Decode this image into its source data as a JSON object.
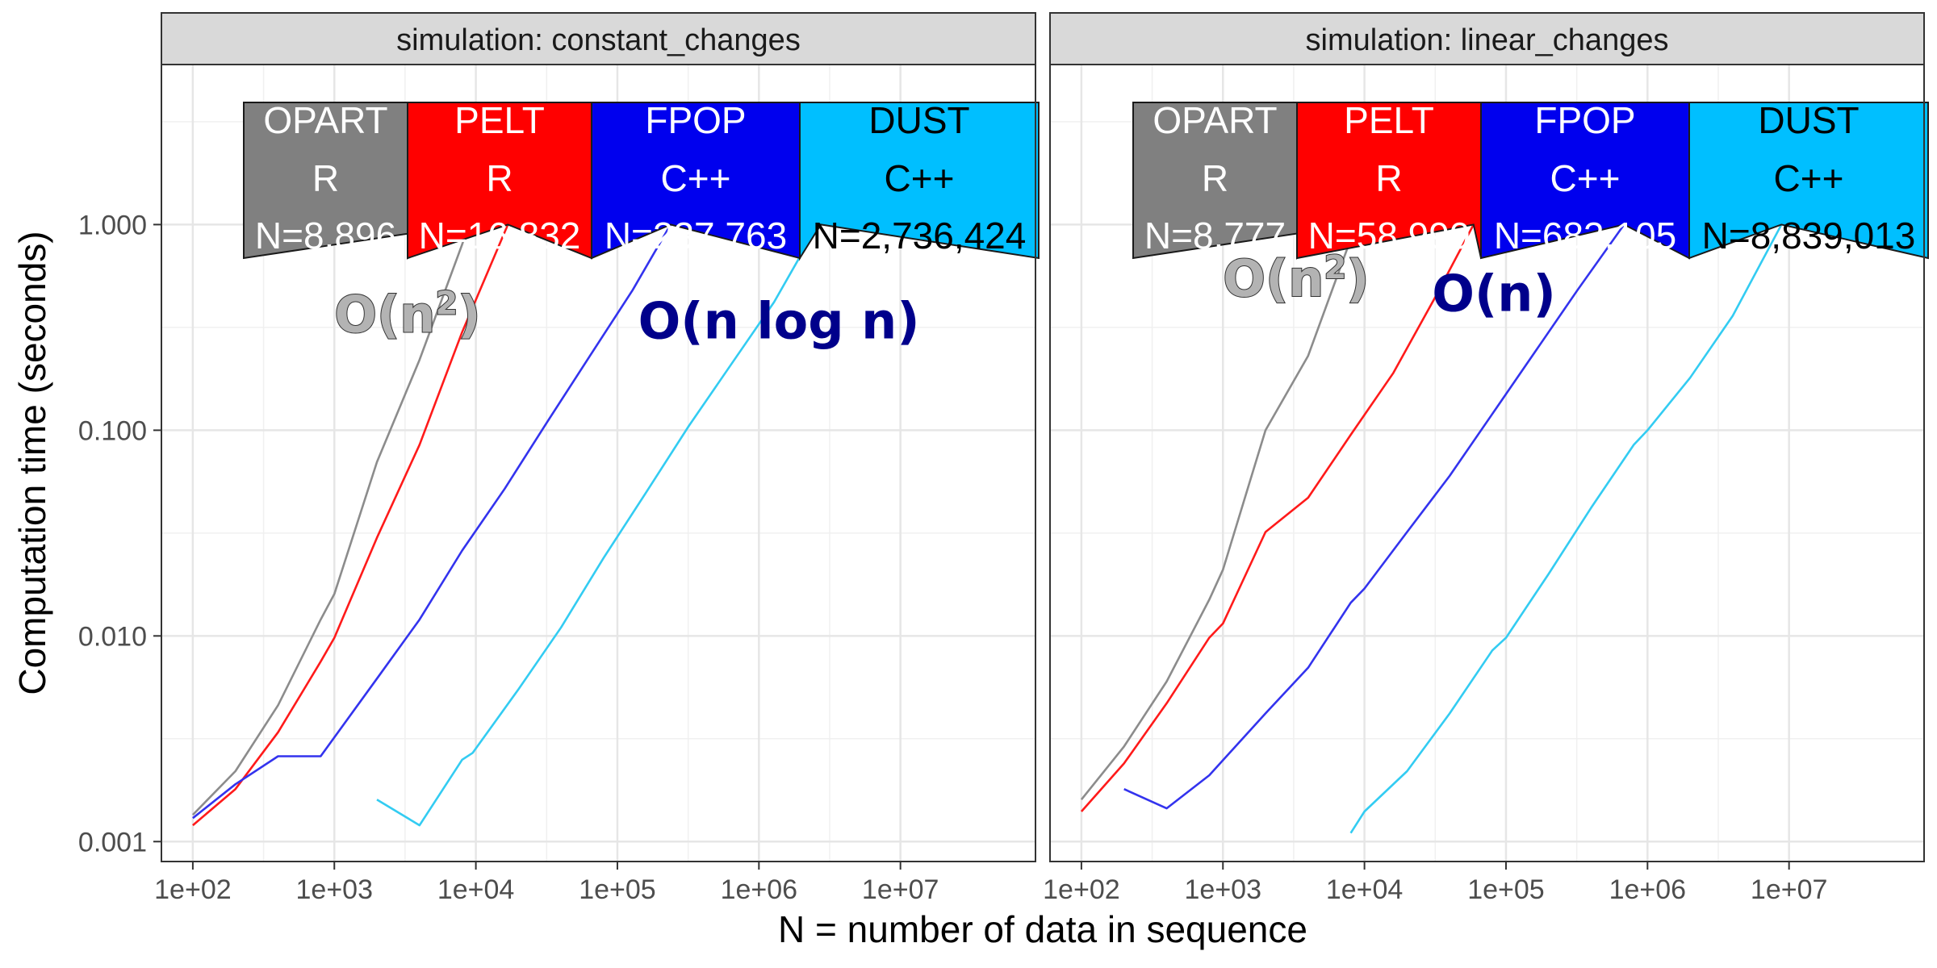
{
  "chart_data": {
    "type": "line",
    "xlabel": "N = number of data in sequence",
    "ylabel": "Computation time (seconds)",
    "x_scale": "log10",
    "y_scale": "log10",
    "xlim": [
      60,
      90000000
    ],
    "ylim": [
      0.0008,
      6
    ],
    "x_ticks": [
      100,
      1000,
      10000,
      100000,
      1000000,
      10000000
    ],
    "x_tick_labels": [
      "1e+02",
      "1e+03",
      "1e+04",
      "1e+05",
      "1e+06",
      "1e+07"
    ],
    "y_ticks": [
      0.001,
      0.01,
      0.1,
      1
    ],
    "y_tick_labels": [
      "0.001",
      "0.010",
      "0.100",
      "1.000"
    ],
    "grid": true,
    "legend": "none",
    "colors": {
      "OPART": "#8c8c8c",
      "PELT": "#ff1a1a",
      "FPOP": "#3333ee",
      "DUST": "#33ccf2"
    },
    "panels": [
      {
        "strip": "simulation: constant_changes",
        "annotations": [
          {
            "text_main": "O(n",
            "text_sup": "2",
            "text_end": ")",
            "x": 1000,
            "y": 0.3,
            "color": "#b3b3b3",
            "outline": "#333333"
          },
          {
            "text_main": "O(n log n)",
            "text_sup": "",
            "text_end": "",
            "x": 140000,
            "y": 0.28,
            "color": "#00008b",
            "outline": "#00008b"
          }
        ],
        "series": [
          {
            "name": "OPART",
            "label_lang": "R",
            "label_n": "N=8,896",
            "n_max": 8896,
            "x": [
              100,
              200,
              400,
              800,
              1000,
              2000,
              4000,
              8000,
              8896
            ],
            "y": [
              0.00135,
              0.0022,
              0.0046,
              0.012,
              0.016,
              0.07,
              0.22,
              0.8,
              1.0
            ]
          },
          {
            "name": "PELT",
            "label_lang": "R",
            "label_n": "N=16,832",
            "n_max": 16832,
            "x": [
              100,
              200,
              400,
              800,
              1000,
              2000,
              4000,
              8000,
              16832
            ],
            "y": [
              0.0012,
              0.0018,
              0.0034,
              0.0075,
              0.0098,
              0.03,
              0.085,
              0.3,
              1.0
            ]
          },
          {
            "name": "FPOP",
            "label_lang": "C++",
            "label_n": "N=237,763",
            "n_max": 237763,
            "x": [
              100,
              200,
              400,
              800,
              2000,
              4000,
              8000,
              16000,
              32000,
              64000,
              128000,
              237763
            ],
            "y": [
              0.0013,
              0.0019,
              0.0026,
              0.0026,
              0.0062,
              0.012,
              0.026,
              0.052,
              0.11,
              0.23,
              0.48,
              1.0
            ]
          },
          {
            "name": "DUST",
            "label_lang": "C++",
            "label_n": "N=2,736,424",
            "n_max": 2736424,
            "x": [
              2000,
              4000,
              8000,
              9500,
              20000,
              40000,
              80000,
              160000,
              320000,
              640000,
              1280000,
              2000000,
              2736424
            ],
            "y": [
              0.0016,
              0.0012,
              0.0025,
              0.0027,
              0.0055,
              0.011,
              0.024,
              0.05,
              0.105,
              0.21,
              0.42,
              0.72,
              1.0
            ]
          }
        ]
      },
      {
        "strip": "simulation: linear_changes",
        "annotations": [
          {
            "text_main": "O(n",
            "text_sup": "2",
            "text_end": ")",
            "x": 1000,
            "y": 0.45,
            "color": "#b3b3b3",
            "outline": "#333333"
          },
          {
            "text_main": "O(n)",
            "text_sup": "",
            "text_end": "",
            "x": 30000,
            "y": 0.38,
            "color": "#00008b",
            "outline": "#00008b"
          }
        ],
        "series": [
          {
            "name": "OPART",
            "label_lang": "R",
            "label_n": "N=8,777",
            "n_max": 8777,
            "x": [
              100,
              200,
              400,
              800,
              1000,
              2000,
              4000,
              8000,
              8777
            ],
            "y": [
              0.0016,
              0.0029,
              0.006,
              0.015,
              0.021,
              0.1,
              0.23,
              0.85,
              1.0
            ]
          },
          {
            "name": "PELT",
            "label_lang": "R",
            "label_n": "N=58,990",
            "n_max": 58990,
            "x": [
              100,
              200,
              400,
              800,
              1000,
              2000,
              4000,
              8000,
              16000,
              32000,
              58990
            ],
            "y": [
              0.0014,
              0.0024,
              0.0047,
              0.0098,
              0.0115,
              0.032,
              0.047,
              0.095,
              0.19,
              0.45,
              1.0
            ]
          },
          {
            "name": "FPOP",
            "label_lang": "C++",
            "label_n": "N=683,105",
            "n_max": 683105,
            "x": [
              200,
              400,
              800,
              2000,
              4000,
              8000,
              10000,
              20000,
              40000,
              80000,
              160000,
              320000,
              683105
            ],
            "y": [
              0.0018,
              0.00145,
              0.0021,
              0.0042,
              0.007,
              0.0145,
              0.017,
              0.032,
              0.06,
              0.12,
              0.24,
              0.48,
              1.0
            ]
          },
          {
            "name": "DUST",
            "label_lang": "C++",
            "label_n": "N=8,839,013",
            "n_max": 8839013,
            "x": [
              8000,
              10000,
              20000,
              40000,
              80000,
              100000,
              200000,
              400000,
              800000,
              1000000,
              2000000,
              4000000,
              8839013
            ],
            "y": [
              0.0011,
              0.0014,
              0.0022,
              0.0042,
              0.0085,
              0.0098,
              0.02,
              0.042,
              0.085,
              0.1,
              0.18,
              0.36,
              1.0
            ]
          }
        ]
      }
    ]
  }
}
